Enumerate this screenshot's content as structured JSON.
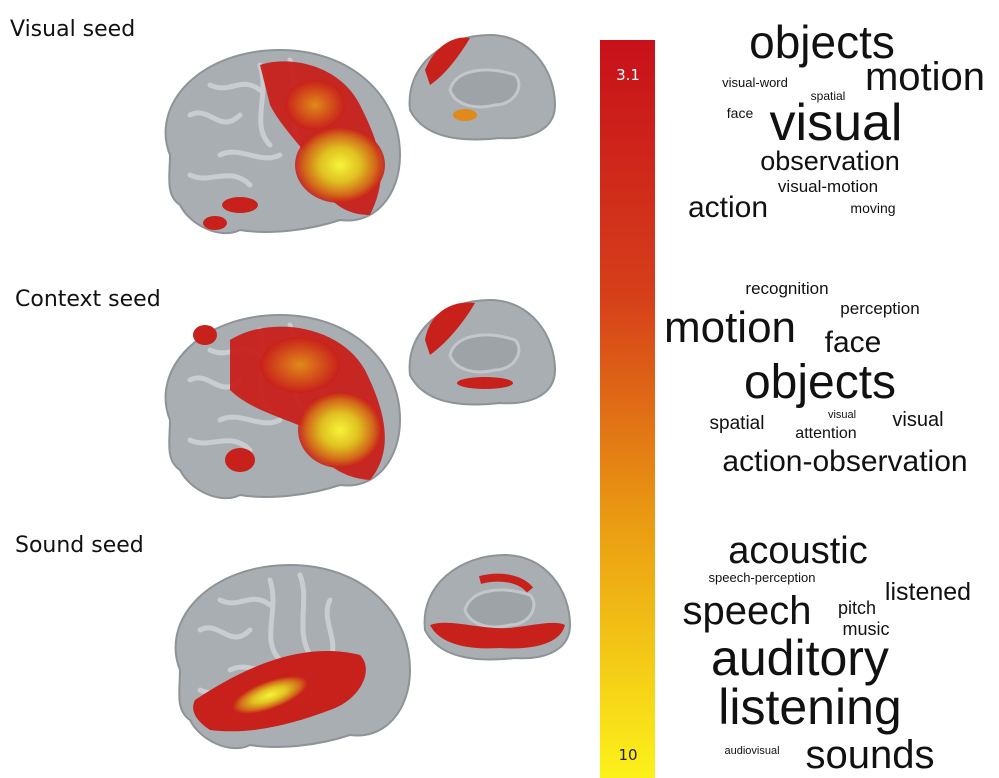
{
  "panels": [
    {
      "label": "Visual seed",
      "words": [
        "objects",
        "motion",
        "visual-word",
        "spatial",
        "face",
        "visual",
        "observation",
        "visual-motion",
        "action",
        "moving"
      ]
    },
    {
      "label": "Context seed",
      "words": [
        "recognition",
        "perception",
        "motion",
        "face",
        "objects",
        "spatial",
        "visual",
        "attention",
        "visual",
        "action-observation"
      ]
    },
    {
      "label": "Sound seed",
      "words": [
        "acoustic",
        "speech-perception",
        "listened",
        "speech",
        "pitch",
        "music",
        "auditory",
        "listening",
        "audiovisual",
        "sounds"
      ]
    }
  ],
  "colorbar": {
    "top_label": "3.1",
    "bottom_label": "10"
  }
}
